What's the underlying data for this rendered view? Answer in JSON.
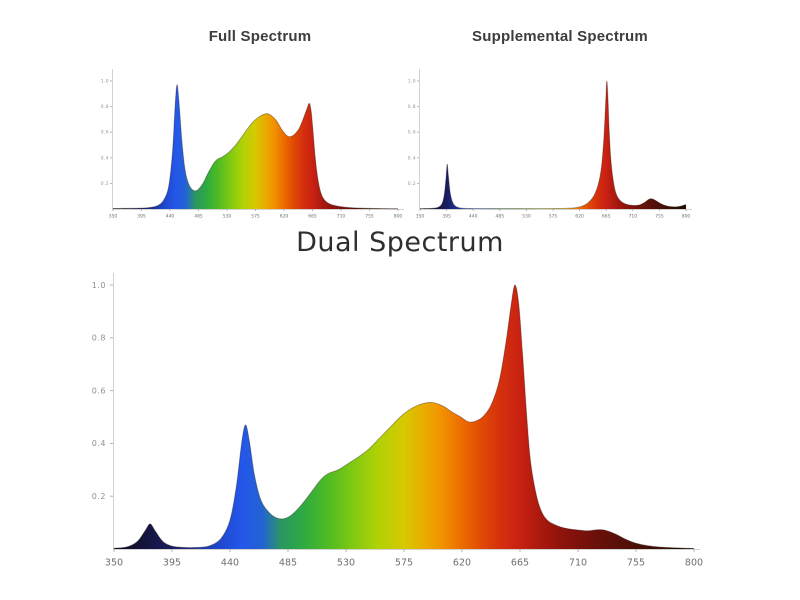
{
  "page": {
    "background": "#ffffff"
  },
  "chart_data": [
    {
      "id": "full_spectrum",
      "type": "area",
      "title": "Full Spectrum",
      "xlabel": "",
      "ylabel": "",
      "xlim": [
        350,
        800
      ],
      "ylim": [
        0,
        1.05
      ],
      "x_ticks": [
        350,
        395,
        440,
        485,
        530,
        575,
        620,
        665,
        710,
        755,
        800
      ],
      "y_ticks": [
        0.2,
        0.4,
        0.6,
        0.8,
        1.0
      ],
      "grid": false,
      "legend": "none",
      "points": [
        [
          350,
          0.004
        ],
        [
          385,
          0.006
        ],
        [
          405,
          0.01
        ],
        [
          420,
          0.025
        ],
        [
          430,
          0.07
        ],
        [
          438,
          0.18
        ],
        [
          444,
          0.45
        ],
        [
          448,
          0.8
        ],
        [
          451,
          0.97
        ],
        [
          454,
          0.85
        ],
        [
          459,
          0.52
        ],
        [
          464,
          0.3
        ],
        [
          470,
          0.19
        ],
        [
          477,
          0.145
        ],
        [
          484,
          0.15
        ],
        [
          492,
          0.2
        ],
        [
          500,
          0.28
        ],
        [
          508,
          0.35
        ],
        [
          514,
          0.385
        ],
        [
          522,
          0.405
        ],
        [
          532,
          0.44
        ],
        [
          542,
          0.49
        ],
        [
          552,
          0.555
        ],
        [
          562,
          0.625
        ],
        [
          572,
          0.685
        ],
        [
          582,
          0.725
        ],
        [
          592,
          0.745
        ],
        [
          600,
          0.73
        ],
        [
          608,
          0.69
        ],
        [
          616,
          0.625
        ],
        [
          624,
          0.575
        ],
        [
          630,
          0.565
        ],
        [
          637,
          0.585
        ],
        [
          644,
          0.63
        ],
        [
          650,
          0.7
        ],
        [
          656,
          0.78
        ],
        [
          660,
          0.825
        ],
        [
          663,
          0.76
        ],
        [
          666,
          0.6
        ],
        [
          669,
          0.42
        ],
        [
          673,
          0.25
        ],
        [
          678,
          0.13
        ],
        [
          684,
          0.07
        ],
        [
          692,
          0.04
        ],
        [
          702,
          0.025
        ],
        [
          715,
          0.015
        ],
        [
          735,
          0.008
        ],
        [
          765,
          0.004
        ],
        [
          800,
          0.002
        ]
      ]
    },
    {
      "id": "supplemental_spectrum",
      "type": "area",
      "title": "Supplemental Spectrum",
      "xlabel": "",
      "ylabel": "",
      "xlim": [
        350,
        800
      ],
      "ylim": [
        0,
        1.05
      ],
      "x_ticks": [
        350,
        395,
        440,
        485,
        530,
        575,
        620,
        665,
        710,
        755,
        800
      ],
      "y_ticks": [
        0.2,
        0.4,
        0.6,
        0.8,
        1.0
      ],
      "grid": false,
      "legend": "none",
      "points": [
        [
          350,
          0.003
        ],
        [
          368,
          0.005
        ],
        [
          380,
          0.012
        ],
        [
          387,
          0.04
        ],
        [
          391,
          0.11
        ],
        [
          394,
          0.24
        ],
        [
          396,
          0.35
        ],
        [
          398,
          0.26
        ],
        [
          401,
          0.13
        ],
        [
          405,
          0.055
        ],
        [
          410,
          0.022
        ],
        [
          418,
          0.008
        ],
        [
          432,
          0.004
        ],
        [
          460,
          0.003
        ],
        [
          500,
          0.003
        ],
        [
          545,
          0.003
        ],
        [
          585,
          0.004
        ],
        [
          605,
          0.007
        ],
        [
          618,
          0.014
        ],
        [
          628,
          0.03
        ],
        [
          637,
          0.06
        ],
        [
          645,
          0.11
        ],
        [
          652,
          0.2
        ],
        [
          657,
          0.33
        ],
        [
          661,
          0.55
        ],
        [
          664,
          0.82
        ],
        [
          666,
          1.0
        ],
        [
          668,
          0.86
        ],
        [
          670,
          0.62
        ],
        [
          673,
          0.38
        ],
        [
          677,
          0.22
        ],
        [
          681,
          0.13
        ],
        [
          686,
          0.08
        ],
        [
          693,
          0.05
        ],
        [
          701,
          0.035
        ],
        [
          711,
          0.028
        ],
        [
          721,
          0.032
        ],
        [
          730,
          0.052
        ],
        [
          737,
          0.075
        ],
        [
          742,
          0.08
        ],
        [
          748,
          0.068
        ],
        [
          755,
          0.048
        ],
        [
          763,
          0.03
        ],
        [
          772,
          0.02
        ],
        [
          782,
          0.017
        ],
        [
          791,
          0.022
        ],
        [
          800,
          0.035
        ]
      ]
    },
    {
      "id": "dual_spectrum",
      "type": "area",
      "title": "Dual Spectrum",
      "xlabel": "",
      "ylabel": "",
      "xlim": [
        350,
        800
      ],
      "ylim": [
        0,
        1.05
      ],
      "x_ticks": [
        350,
        395,
        440,
        485,
        530,
        575,
        620,
        665,
        710,
        755,
        800
      ],
      "y_ticks": [
        0.2,
        0.4,
        0.6,
        0.8,
        1.0
      ],
      "grid": false,
      "legend": "none",
      "points": [
        [
          350,
          0.003
        ],
        [
          360,
          0.008
        ],
        [
          368,
          0.028
        ],
        [
          374,
          0.068
        ],
        [
          378,
          0.095
        ],
        [
          382,
          0.068
        ],
        [
          388,
          0.028
        ],
        [
          395,
          0.011
        ],
        [
          404,
          0.006
        ],
        [
          414,
          0.006
        ],
        [
          424,
          0.012
        ],
        [
          433,
          0.04
        ],
        [
          440,
          0.11
        ],
        [
          445,
          0.24
        ],
        [
          449,
          0.4
        ],
        [
          452,
          0.47
        ],
        [
          455,
          0.41
        ],
        [
          459,
          0.28
        ],
        [
          464,
          0.185
        ],
        [
          470,
          0.14
        ],
        [
          476,
          0.118
        ],
        [
          482,
          0.115
        ],
        [
          488,
          0.13
        ],
        [
          495,
          0.165
        ],
        [
          503,
          0.215
        ],
        [
          510,
          0.26
        ],
        [
          516,
          0.285
        ],
        [
          524,
          0.3
        ],
        [
          532,
          0.325
        ],
        [
          540,
          0.35
        ],
        [
          548,
          0.38
        ],
        [
          556,
          0.42
        ],
        [
          564,
          0.46
        ],
        [
          572,
          0.5
        ],
        [
          580,
          0.53
        ],
        [
          589,
          0.55
        ],
        [
          597,
          0.555
        ],
        [
          605,
          0.542
        ],
        [
          612,
          0.52
        ],
        [
          619,
          0.5
        ],
        [
          625,
          0.482
        ],
        [
          631,
          0.485
        ],
        [
          637,
          0.505
        ],
        [
          643,
          0.55
        ],
        [
          649,
          0.64
        ],
        [
          654,
          0.78
        ],
        [
          658,
          0.92
        ],
        [
          661,
          1.0
        ],
        [
          664,
          0.93
        ],
        [
          667,
          0.74
        ],
        [
          670,
          0.52
        ],
        [
          673,
          0.34
        ],
        [
          677,
          0.22
        ],
        [
          681,
          0.15
        ],
        [
          686,
          0.11
        ],
        [
          693,
          0.09
        ],
        [
          701,
          0.078
        ],
        [
          710,
          0.072
        ],
        [
          718,
          0.069
        ],
        [
          725,
          0.073
        ],
        [
          731,
          0.071
        ],
        [
          739,
          0.057
        ],
        [
          747,
          0.037
        ],
        [
          755,
          0.022
        ],
        [
          765,
          0.012
        ],
        [
          778,
          0.006
        ],
        [
          800,
          0.002
        ]
      ]
    }
  ],
  "spectral_gradient_stops": [
    [
      350,
      "#0b0b20"
    ],
    [
      372,
      "#13133a"
    ],
    [
      395,
      "#191d5e"
    ],
    [
      412,
      "#1c2f92"
    ],
    [
      432,
      "#1f48cf"
    ],
    [
      450,
      "#2457ea"
    ],
    [
      465,
      "#2363d2"
    ],
    [
      480,
      "#2b9761"
    ],
    [
      495,
      "#2ca844"
    ],
    [
      515,
      "#4dba24"
    ],
    [
      535,
      "#7fc912"
    ],
    [
      555,
      "#b0d206"
    ],
    [
      575,
      "#d6c900"
    ],
    [
      590,
      "#e9ad00"
    ],
    [
      605,
      "#f29000"
    ],
    [
      620,
      "#ec6c00"
    ],
    [
      635,
      "#e14a05"
    ],
    [
      650,
      "#d5300d"
    ],
    [
      665,
      "#c92112"
    ],
    [
      682,
      "#a7180e"
    ],
    [
      700,
      "#8a130c"
    ],
    [
      725,
      "#6a100a"
    ],
    [
      755,
      "#491006"
    ],
    [
      800,
      "#1f0c04"
    ]
  ],
  "axis_style": {
    "axis_line_color": "#d2d2d2",
    "tick_color": "#b5b5b5",
    "x_label_color": "#6f6f6f",
    "y_label_color": "#8f8f8f",
    "curve_outline_color": "rgba(35,18,8,0.35)"
  }
}
